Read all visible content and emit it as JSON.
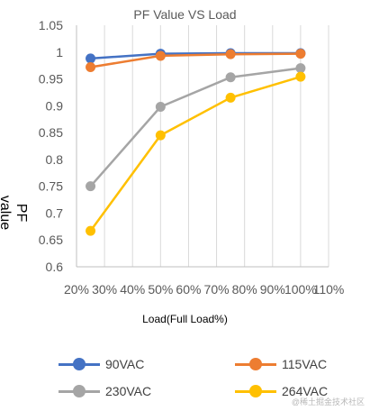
{
  "chart_data": {
    "type": "line",
    "title": "PF Value VS Load",
    "xlabel": "Load(Full Load%)",
    "ylabel": "PF value",
    "x_ticks": [
      "20%",
      "30%",
      "40%",
      "50%",
      "60%",
      "70%",
      "80%",
      "90%",
      "100%",
      "110%"
    ],
    "y_ticks": [
      "0.6",
      "0.65",
      "0.7",
      "0.75",
      "0.8",
      "0.85",
      "0.9",
      "0.95",
      "1",
      "1.05"
    ],
    "xlim": [
      20,
      110
    ],
    "ylim": [
      0.6,
      1.05
    ],
    "x": [
      25,
      50,
      75,
      100
    ],
    "grid": "vertical",
    "legend_position": "bottom",
    "series": [
      {
        "name": "90VAC",
        "color": "#4472C4",
        "values": [
          0.988,
          0.997,
          0.998,
          0.998
        ]
      },
      {
        "name": "115VAC",
        "color": "#ED7D31",
        "values": [
          0.972,
          0.993,
          0.996,
          0.997
        ]
      },
      {
        "name": "230VAC",
        "color": "#A5A5A5",
        "values": [
          0.75,
          0.898,
          0.953,
          0.97
        ]
      },
      {
        "name": "264VAC",
        "color": "#FFC000",
        "values": [
          0.667,
          0.845,
          0.915,
          0.954
        ]
      }
    ]
  },
  "watermark": "@稀土掘金技术社区"
}
